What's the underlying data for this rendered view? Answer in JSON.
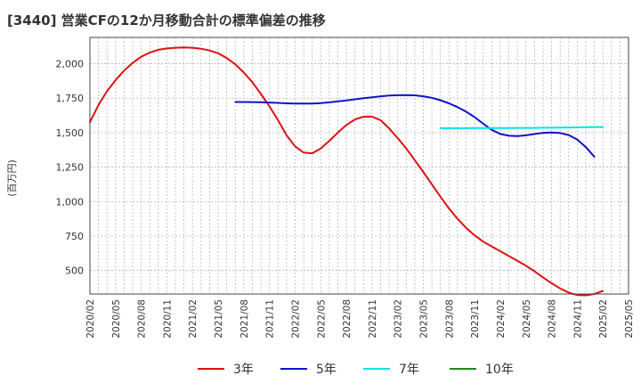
{
  "chart_data": {
    "type": "line",
    "title": "[3440]  営業CFの12か月移動合計の標準偏差の推移",
    "ylabel": "(百万円)",
    "xlabel": "",
    "ylim": [
      330,
      2190
    ],
    "yticks": [
      500,
      750,
      1000,
      1250,
      1500,
      1750,
      2000
    ],
    "ytick_labels": [
      "500",
      "750",
      "1,000",
      "1,250",
      "1,500",
      "1,750",
      "2,000"
    ],
    "xticks": [
      "2020/02",
      "2020/05",
      "2020/08",
      "2020/11",
      "2021/02",
      "2021/05",
      "2021/08",
      "2021/11",
      "2022/02",
      "2022/05",
      "2022/08",
      "2022/11",
      "2023/02",
      "2023/05",
      "2023/08",
      "2023/11",
      "2024/02",
      "2024/05",
      "2024/08",
      "2024/11",
      "2025/02",
      "2025/05"
    ],
    "grid": true,
    "legend_position": "bottom",
    "series": [
      {
        "name": "3年",
        "color": "#dd1111",
        "points": [
          [
            "2020/02",
            1575
          ],
          [
            "2020/03",
            1700
          ],
          [
            "2020/04",
            1800
          ],
          [
            "2020/05",
            1880
          ],
          [
            "2020/06",
            1950
          ],
          [
            "2020/07",
            2005
          ],
          [
            "2020/08",
            2050
          ],
          [
            "2020/09",
            2080
          ],
          [
            "2020/10",
            2100
          ],
          [
            "2020/11",
            2110
          ],
          [
            "2020/12",
            2115
          ],
          [
            "2021/01",
            2117
          ],
          [
            "2021/02",
            2115
          ],
          [
            "2021/03",
            2108
          ],
          [
            "2021/04",
            2095
          ],
          [
            "2021/05",
            2075
          ],
          [
            "2021/06",
            2040
          ],
          [
            "2021/07",
            1995
          ],
          [
            "2021/08",
            1935
          ],
          [
            "2021/09",
            1865
          ],
          [
            "2021/10",
            1780
          ],
          [
            "2021/11",
            1690
          ],
          [
            "2021/12",
            1590
          ],
          [
            "2022/01",
            1480
          ],
          [
            "2022/02",
            1400
          ],
          [
            "2022/03",
            1355
          ],
          [
            "2022/04",
            1350
          ],
          [
            "2022/05",
            1385
          ],
          [
            "2022/06",
            1440
          ],
          [
            "2022/07",
            1500
          ],
          [
            "2022/08",
            1555
          ],
          [
            "2022/09",
            1595
          ],
          [
            "2022/10",
            1615
          ],
          [
            "2022/11",
            1615
          ],
          [
            "2022/12",
            1590
          ],
          [
            "2023/01",
            1530
          ],
          [
            "2023/02",
            1460
          ],
          [
            "2023/03",
            1385
          ],
          [
            "2023/04",
            1300
          ],
          [
            "2023/05",
            1215
          ],
          [
            "2023/06",
            1125
          ],
          [
            "2023/07",
            1035
          ],
          [
            "2023/08",
            950
          ],
          [
            "2023/09",
            875
          ],
          [
            "2023/10",
            810
          ],
          [
            "2023/11",
            755
          ],
          [
            "2023/12",
            710
          ],
          [
            "2024/01",
            675
          ],
          [
            "2024/02",
            640
          ],
          [
            "2024/03",
            605
          ],
          [
            "2024/04",
            570
          ],
          [
            "2024/05",
            535
          ],
          [
            "2024/06",
            495
          ],
          [
            "2024/07",
            450
          ],
          [
            "2024/08",
            408
          ],
          [
            "2024/09",
            370
          ],
          [
            "2024/10",
            340
          ],
          [
            "2024/11",
            322
          ],
          [
            "2024/12",
            320
          ],
          [
            "2025/01",
            330
          ],
          [
            "2025/02",
            352
          ]
        ]
      },
      {
        "name": "5年",
        "color": "#1111cc",
        "points": [
          [
            "2021/07",
            1722
          ],
          [
            "2021/08",
            1722
          ],
          [
            "2021/09",
            1721
          ],
          [
            "2021/10",
            1720
          ],
          [
            "2021/11",
            1718
          ],
          [
            "2021/12",
            1715
          ],
          [
            "2022/01",
            1712
          ],
          [
            "2022/02",
            1710
          ],
          [
            "2022/03",
            1710
          ],
          [
            "2022/04",
            1711
          ],
          [
            "2022/05",
            1714
          ],
          [
            "2022/06",
            1719
          ],
          [
            "2022/07",
            1726
          ],
          [
            "2022/08",
            1733
          ],
          [
            "2022/09",
            1741
          ],
          [
            "2022/10",
            1749
          ],
          [
            "2022/11",
            1756
          ],
          [
            "2022/12",
            1763
          ],
          [
            "2023/01",
            1768
          ],
          [
            "2023/02",
            1771
          ],
          [
            "2023/03",
            1772
          ],
          [
            "2023/04",
            1770
          ],
          [
            "2023/05",
            1763
          ],
          [
            "2023/06",
            1752
          ],
          [
            "2023/07",
            1735
          ],
          [
            "2023/08",
            1712
          ],
          [
            "2023/09",
            1685
          ],
          [
            "2023/10",
            1652
          ],
          [
            "2023/11",
            1612
          ],
          [
            "2023/12",
            1565
          ],
          [
            "2024/01",
            1520
          ],
          [
            "2024/02",
            1490
          ],
          [
            "2024/03",
            1477
          ],
          [
            "2024/04",
            1475
          ],
          [
            "2024/05",
            1480
          ],
          [
            "2024/06",
            1490
          ],
          [
            "2024/07",
            1498
          ],
          [
            "2024/08",
            1501
          ],
          [
            "2024/09",
            1497
          ],
          [
            "2024/10",
            1482
          ],
          [
            "2024/11",
            1450
          ],
          [
            "2024/12",
            1395
          ],
          [
            "2025/01",
            1325
          ]
        ]
      },
      {
        "name": "7年",
        "color": "#00e5e5",
        "points": [
          [
            "2023/07",
            1532
          ],
          [
            "2023/08",
            1532
          ],
          [
            "2023/09",
            1532
          ],
          [
            "2023/10",
            1532
          ],
          [
            "2023/11",
            1533
          ],
          [
            "2023/12",
            1533
          ],
          [
            "2024/01",
            1533
          ],
          [
            "2024/02",
            1533
          ],
          [
            "2024/03",
            1533
          ],
          [
            "2024/04",
            1534
          ],
          [
            "2024/05",
            1534
          ],
          [
            "2024/06",
            1534
          ],
          [
            "2024/07",
            1535
          ],
          [
            "2024/08",
            1535
          ],
          [
            "2024/09",
            1536
          ],
          [
            "2024/10",
            1537
          ],
          [
            "2024/11",
            1538
          ],
          [
            "2024/12",
            1539
          ],
          [
            "2025/01",
            1540
          ],
          [
            "2025/02",
            1540
          ]
        ]
      },
      {
        "name": "10年",
        "color": "#228822",
        "points": []
      }
    ]
  }
}
